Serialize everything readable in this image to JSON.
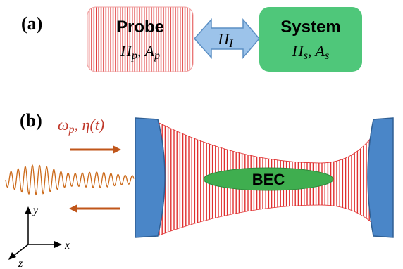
{
  "panel_a": {
    "label": "(a)",
    "probe": {
      "title": "Probe",
      "math": "H",
      "math_sub_p": "p",
      "math_mid": ", A",
      "math_sub_p2": "p"
    },
    "interaction": {
      "math": "H",
      "sub": "I"
    },
    "system": {
      "title": "System",
      "math": "H",
      "math_sub_s": "s",
      "math_mid": ", A",
      "math_sub_s2": "s"
    }
  },
  "panel_b": {
    "label": "(b)",
    "drive": {
      "omega": "ω",
      "omega_sub": "p",
      "eta": ", η(t)"
    },
    "bec_label": "BEC",
    "axes": {
      "x": "x",
      "y": "y",
      "z": "z"
    }
  },
  "colors": {
    "probe_stripe": "#e04040",
    "system_fill": "#4fc77a",
    "interaction_fill": "#9cc3ea",
    "mirror_fill": "#4a86c8",
    "wave": "#cc6a1a",
    "arrow": "#c0561a",
    "omega_text": "#c0392b",
    "bec_fill": "#3fae4f",
    "cavity_stripe": "#e03030"
  }
}
